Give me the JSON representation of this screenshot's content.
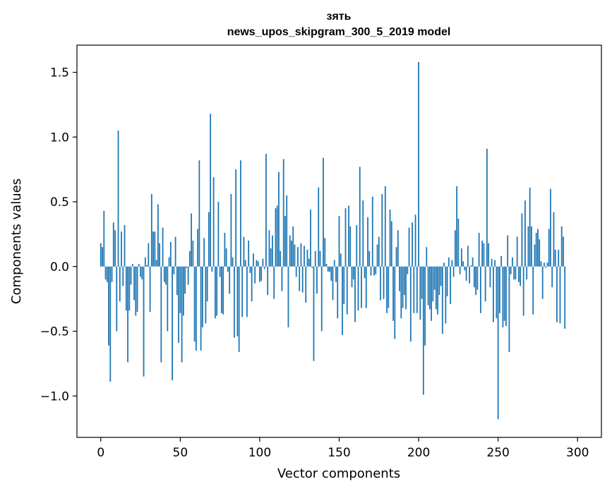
{
  "chart_data": {
    "type": "bar",
    "title": [
      "зять",
      "news_upos_skipgram_300_5_2019 model"
    ],
    "xlabel": "Vector components",
    "ylabel": "Components values",
    "xlim": [
      -15,
      315
    ],
    "ylim": [
      -1.32,
      1.71
    ],
    "xticks": [
      0,
      50,
      100,
      150,
      200,
      250,
      300
    ],
    "yticks": [
      -1.0,
      -0.5,
      0.0,
      0.5,
      1.0,
      1.5
    ],
    "yticklabels": [
      "−1.0",
      "−0.5",
      "0.0",
      "0.5",
      "1.0",
      "1.5"
    ],
    "grid": false,
    "bar_color": "#1f77b4",
    "values": [
      0.18,
      0.15,
      0.43,
      -0.1,
      -0.12,
      -0.61,
      -0.89,
      -0.12,
      0.34,
      0.28,
      -0.5,
      1.05,
      -0.27,
      0.27,
      -0.15,
      0.32,
      -0.34,
      -0.74,
      -0.34,
      -0.14,
      0.02,
      -0.26,
      -0.38,
      -0.35,
      0.02,
      -0.08,
      -0.1,
      -0.85,
      0.07,
      0.01,
      0.18,
      -0.35,
      0.56,
      0.27,
      0.27,
      0.05,
      0.48,
      0.18,
      -0.74,
      0.3,
      -0.12,
      -0.14,
      -0.5,
      0.07,
      0.19,
      -0.88,
      -0.06,
      0.23,
      -0.22,
      -0.59,
      -0.36,
      -0.74,
      -0.38,
      -0.21,
      -0.01,
      -0.14,
      0.12,
      0.41,
      0.2,
      -0.58,
      -0.65,
      0.29,
      0.82,
      -0.65,
      -0.47,
      0.22,
      -0.44,
      -0.27,
      0.42,
      1.18,
      -0.04,
      0.69,
      -0.4,
      -0.38,
      0.5,
      -0.08,
      -0.36,
      -0.37,
      0.26,
      0.14,
      -0.04,
      -0.21,
      0.56,
      0.07,
      -0.55,
      0.75,
      -0.54,
      -0.66,
      0.82,
      -0.39,
      0.23,
      0.05,
      -0.39,
      0.2,
      -0.05,
      -0.27,
      0.1,
      -0.13,
      0.05,
      0.04,
      -0.12,
      -0.11,
      0.06,
      -0.02,
      0.87,
      -0.22,
      0.28,
      0.14,
      0.24,
      -0.25,
      0.45,
      0.47,
      0.73,
      0.12,
      -0.19,
      0.83,
      0.39,
      0.55,
      -0.47,
      0.24,
      0.2,
      0.31,
      0.17,
      -0.08,
      0.15,
      -0.19,
      0.18,
      -0.2,
      0.16,
      -0.28,
      0.13,
      0.06,
      0.44,
      -0.01,
      -0.73,
      0.12,
      -0.21,
      0.61,
      0.12,
      -0.5,
      0.84,
      0.22,
      0.02,
      -0.04,
      -0.04,
      -0.11,
      -0.26,
      0.05,
      -0.12,
      -0.4,
      0.39,
      0.1,
      -0.53,
      -0.29,
      0.45,
      -0.37,
      0.47,
      0.31,
      -0.16,
      -0.1,
      -0.43,
      0.32,
      -0.34,
      0.77,
      -0.32,
      0.51,
      -0.09,
      -0.32,
      0.38,
      0.12,
      -0.07,
      0.54,
      -0.07,
      -0.06,
      0.17,
      0.23,
      -0.26,
      0.56,
      -0.25,
      0.62,
      -0.36,
      -0.32,
      0.44,
      0.35,
      -0.42,
      -0.56,
      0.15,
      0.28,
      -0.19,
      -0.4,
      -0.32,
      -0.22,
      -0.33,
      -0.06,
      0.3,
      -0.58,
      0.34,
      -0.36,
      0.4,
      -0.36,
      1.58,
      -0.41,
      -0.25,
      -0.99,
      -0.61,
      0.15,
      -0.3,
      -0.33,
      -0.42,
      -0.27,
      -0.18,
      -0.33,
      -0.37,
      -0.22,
      -0.15,
      -0.52,
      0.03,
      -0.44,
      -0.23,
      0.07,
      -0.29,
      0.05,
      -0.08,
      0.28,
      0.62,
      0.37,
      -0.06,
      0.14,
      0.04,
      -0.03,
      -0.11,
      0.16,
      -0.13,
      0.01,
      0.07,
      -0.16,
      -0.22,
      -0.18,
      0.26,
      -0.36,
      0.2,
      0.18,
      -0.27,
      0.91,
      0.18,
      -0.16,
      0.06,
      -0.43,
      0.05,
      -0.4,
      -1.18,
      -0.36,
      0.08,
      -0.47,
      -0.42,
      -0.46,
      0.24,
      -0.66,
      -0.06,
      0.07,
      -0.1,
      -0.1,
      0.23,
      -0.12,
      -0.15,
      0.41,
      -0.38,
      0.51,
      -0.1,
      0.31,
      0.61,
      0.31,
      -0.37,
      0.17,
      0.26,
      0.29,
      0.21,
      0.04,
      -0.25,
      0.03,
      -0.01,
      0.03,
      0.29,
      0.6,
      -0.16,
      0.42,
      0.13,
      -0.43,
      0.13,
      -0.44,
      0.31,
      0.23,
      -0.48
    ]
  }
}
